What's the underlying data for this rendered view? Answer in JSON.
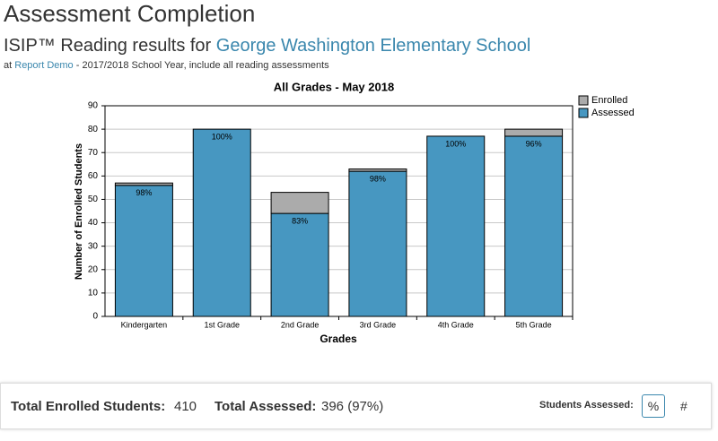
{
  "page_title": "Assessment Completion",
  "subtitle": {
    "prefix": "ISIP™ Reading results for",
    "school": "George Washington Elementary School"
  },
  "context": {
    "at": "at",
    "link": "Report Demo",
    "rest": "- 2017/2018 School Year, include all reading assessments"
  },
  "chart_data": {
    "type": "stacked-bar",
    "title": "All Grades - May 2018",
    "x_label": "Grades",
    "y_label": "Number of Enrolled Students",
    "categories": [
      "Kindergarten",
      "1st Grade",
      "2nd Grade",
      "3rd Grade",
      "4th Grade",
      "5th Grade"
    ],
    "series": [
      {
        "name": "Assessed",
        "color": "#4797c1",
        "values": [
          56,
          80,
          44,
          62,
          77,
          77
        ]
      },
      {
        "name": "Enrolled",
        "color": "#ababab",
        "values": [
          1,
          0,
          9,
          1,
          0,
          3
        ]
      }
    ],
    "percent_labels": [
      "98%",
      "100%",
      "83%",
      "98%",
      "100%",
      "96%"
    ],
    "ylim": [
      0,
      90
    ],
    "yticks": [
      0,
      10,
      20,
      30,
      40,
      50,
      60,
      70,
      80,
      90
    ],
    "grid": true
  },
  "summary": {
    "enrolled_label": "Total Enrolled Students:",
    "enrolled": 410,
    "assessed_label": "Total Assessed:",
    "assessed": "396 (97%)",
    "toggle_label": "Students Assessed:",
    "percent_button": "%",
    "count_button": "#"
  }
}
